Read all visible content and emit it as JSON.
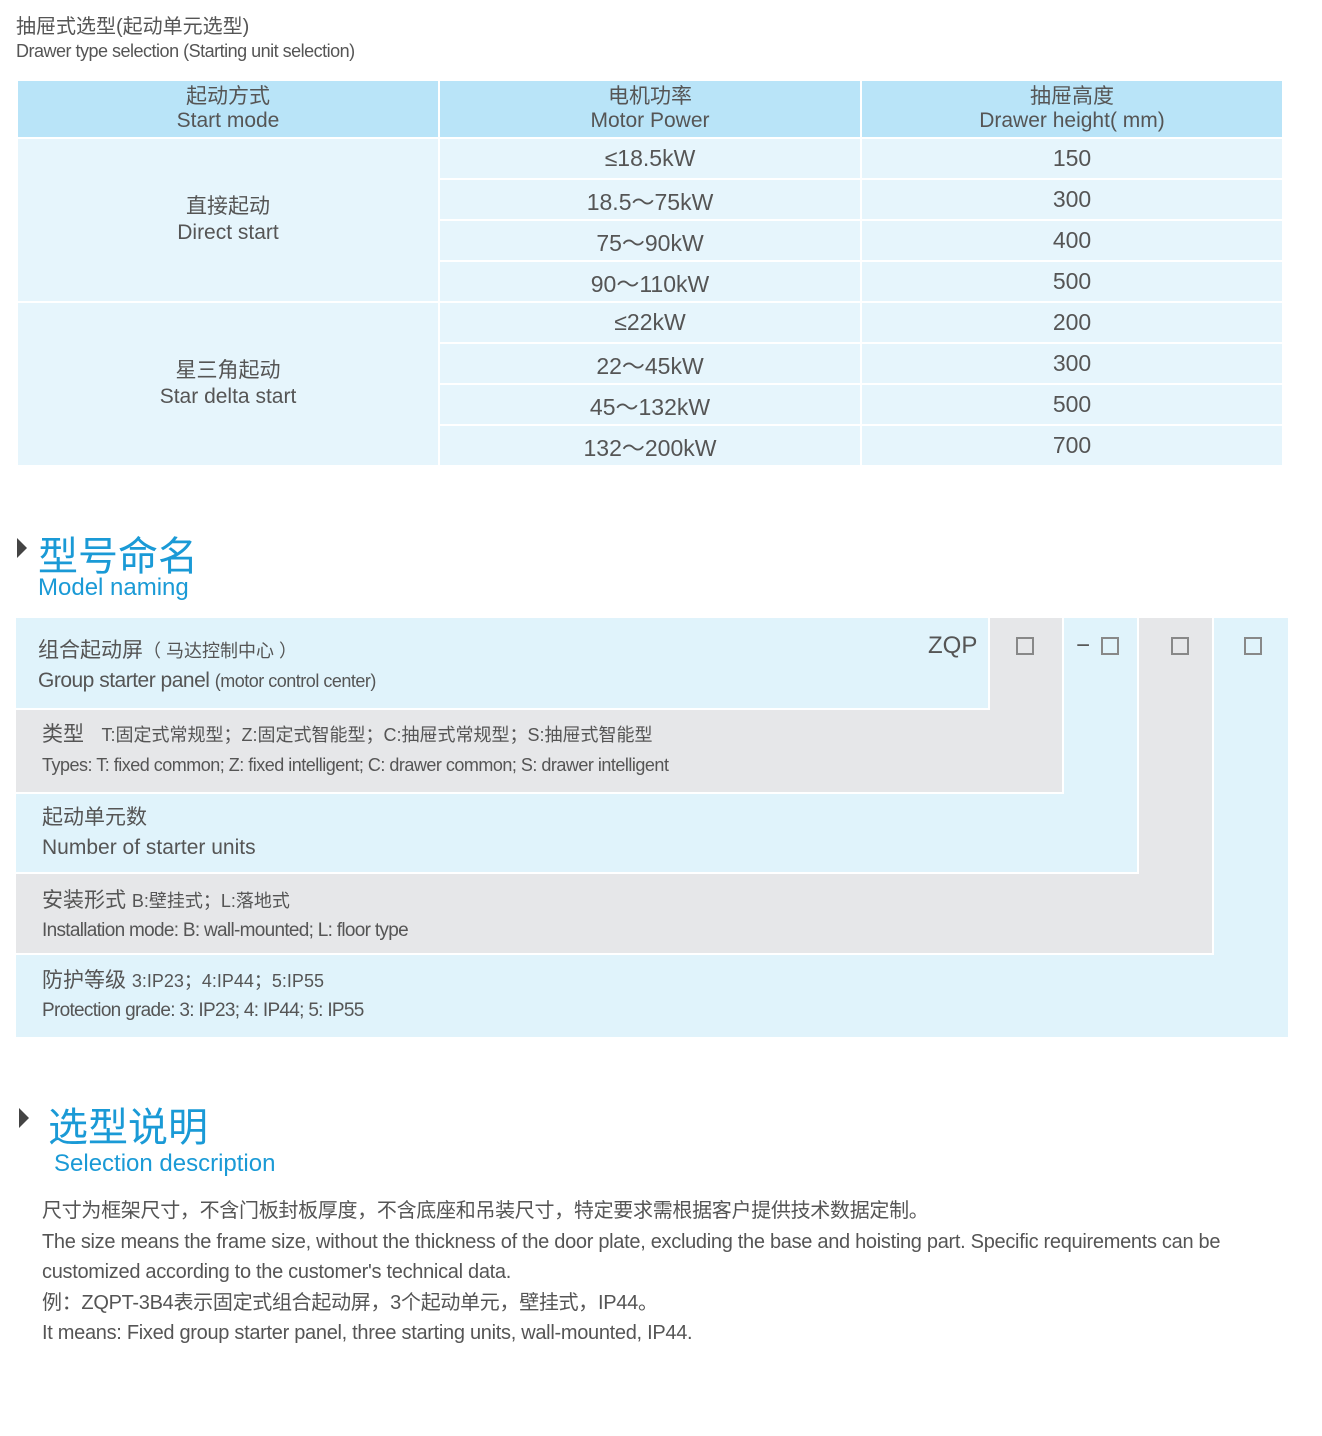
{
  "title": {
    "cn": "抽屉式选型(起动单元选型)",
    "en": "Drawer type selection (Starting unit selection)"
  },
  "table": {
    "headers": [
      {
        "cn": "起动方式",
        "en": "Start mode"
      },
      {
        "cn": "电机功率",
        "en": "Motor Power"
      },
      {
        "cn": "抽屉高度",
        "en": "Drawer height( mm)"
      }
    ],
    "groups": [
      {
        "cn": "直接起动",
        "en": "Direct start",
        "rows": [
          [
            "≤18.5kW",
            "150"
          ],
          [
            "18.5～75kW",
            "300"
          ],
          [
            "75～90kW",
            "400"
          ],
          [
            "90～110kW",
            "500"
          ]
        ]
      },
      {
        "cn": "星三角起动",
        "en": "Star delta start",
        "rows": [
          [
            "≤22kW",
            "200"
          ],
          [
            "22～45kW",
            "300"
          ],
          [
            "45～132kW",
            "500"
          ],
          [
            "132～200kW",
            "700"
          ]
        ]
      }
    ]
  },
  "model_naming": {
    "cn": "型号命名",
    "en": "Model naming",
    "code": "ZQP",
    "dash": "−",
    "rows": [
      {
        "cn": "组合起动屏",
        "cn_sub": "（ 马达控制中心 ）",
        "en": "Group starter panel",
        "en_sub": "(motor control center)"
      },
      {
        "cn": "类型",
        "cn_sub": "T:固定式常规型；Z:固定式智能型；C:抽屉式常规型；S:抽屉式智能型",
        "en": "Types: T: fixed common; Z: fixed intelligent; C: drawer common; S: drawer intelligent"
      },
      {
        "cn": "起动单元数",
        "en": "Number of starter units"
      },
      {
        "cn": "安装形式",
        "cn_sub": "B:壁挂式；L:落地式",
        "en": "Installation mode: B: wall-mounted; L: floor type"
      },
      {
        "cn": "防护等级",
        "cn_sub": "3:IP23；4:IP44；5:IP55",
        "en": "Protection grade:  3: IP23; 4: IP44; 5: IP55"
      }
    ]
  },
  "selection": {
    "cn": "选型说明",
    "en": "Selection description",
    "lines": [
      "尺寸为框架尺寸，不含门板封板厚度，不含底座和吊装尺寸，特定要求需根据客户提供技术数据定制。",
      "The size means the frame size, without the thickness of the door plate, excluding the base and hoisting part. Specific requirements can be customized according to the customer's technical data.",
      "例：ZQPT-3B4表示固定式组合起动屏，3个起动单元，壁挂式，IP44。",
      "It means: Fixed group starter panel, three starting units, wall-mounted, IP44."
    ]
  },
  "colors": {
    "accent": "#1a9ad6",
    "header": "#b9e4f8",
    "cell": "#e6f5fc",
    "blue_block": "#e0f3fb",
    "gray_block": "#e6e7e9"
  }
}
